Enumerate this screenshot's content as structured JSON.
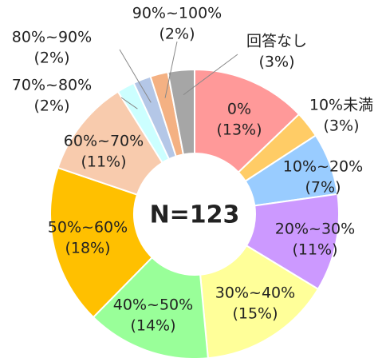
{
  "chart_data": {
    "type": "donut",
    "center_label": "N=123",
    "categories": [
      "0%",
      "10%未満",
      "10%~20%",
      "20%~30%",
      "30%~40%",
      "40%~50%",
      "50%~60%",
      "60%~70%",
      "70%~80%",
      "80%~90%",
      "90%~100%",
      "回答なし"
    ],
    "values": [
      13,
      3,
      7,
      11,
      15,
      14,
      18,
      11,
      2,
      2,
      2,
      3
    ],
    "value_labels": [
      "(13%)",
      "(3%)",
      "(7%)",
      "(11%)",
      "(15%)",
      "(14%)",
      "(18%)",
      "(11%)",
      "(2%)",
      "(2%)",
      "(2%)",
      "(3%)"
    ],
    "colors": [
      "#ff9999",
      "#ffcc66",
      "#99ccff",
      "#cc99ff",
      "#ffff99",
      "#99ff99",
      "#ffc000",
      "#f8cbad",
      "#ccffff",
      "#b4c7e7",
      "#f4b183",
      "#a6a6a6"
    ]
  }
}
